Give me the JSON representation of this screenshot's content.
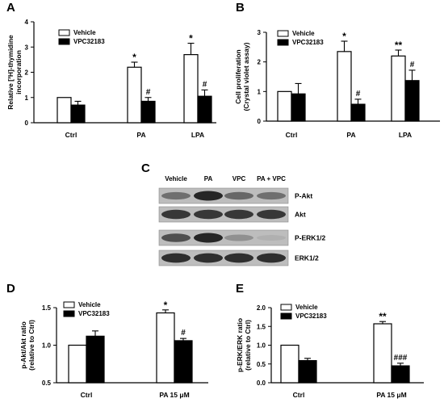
{
  "figure": {
    "panel_letters": [
      "A",
      "B",
      "C",
      "D",
      "E"
    ]
  },
  "colors": {
    "vehicle": "#ffffff",
    "vpc": "#000000",
    "axis": "#000000"
  },
  "chart_data": [
    {
      "panel": "A",
      "type": "bar",
      "categories": [
        "Ctrl",
        "PA",
        "LPA"
      ],
      "ylabel": "Relative [³H]-thymidine incorporation",
      "xlabel": "",
      "ylim": [
        0,
        4
      ],
      "yticks": [
        0,
        1,
        2,
        3,
        4
      ],
      "legend": "top-left",
      "series": [
        {
          "name": "Vehicle",
          "values": [
            1.0,
            2.2,
            2.7
          ],
          "errors": [
            0.0,
            0.2,
            0.45
          ],
          "annotations": [
            "",
            "*",
            "*"
          ]
        },
        {
          "name": "VPC32183",
          "values": [
            0.7,
            0.85,
            1.05
          ],
          "errors": [
            0.15,
            0.15,
            0.25
          ],
          "annotations": [
            "",
            "#",
            "#"
          ]
        }
      ]
    },
    {
      "panel": "B",
      "type": "bar",
      "categories": [
        "Ctrl",
        "PA",
        "LPA"
      ],
      "ylabel": "Cell proliferation (Crystal violet assay)",
      "xlabel": "",
      "ylim": [
        0,
        3
      ],
      "yticks": [
        0,
        1,
        2,
        3
      ],
      "legend": "top-left",
      "series": [
        {
          "name": "Vehicle",
          "values": [
            1.0,
            2.35,
            2.2
          ],
          "errors": [
            0.0,
            0.35,
            0.2
          ],
          "annotations": [
            "",
            "*",
            "**"
          ]
        },
        {
          "name": "VPC32183",
          "values": [
            0.92,
            0.57,
            1.37
          ],
          "errors": [
            0.35,
            0.17,
            0.35
          ],
          "annotations": [
            "",
            "#",
            "#"
          ]
        }
      ]
    },
    {
      "panel": "D",
      "type": "bar",
      "categories": [
        "Ctrl",
        "PA 15 μM"
      ],
      "ylabel": "p-Akt/Akt ratio (relative to Ctrl)",
      "xlabel": "",
      "ylim": [
        0.5,
        1.5
      ],
      "yticks": [
        0.5,
        1.0,
        1.5
      ],
      "legend": "top-left",
      "series": [
        {
          "name": "Vehicle",
          "values": [
            1.0,
            1.43
          ],
          "errors": [
            0.0,
            0.04
          ],
          "annotations": [
            "",
            "*"
          ]
        },
        {
          "name": "VPC32183",
          "values": [
            1.12,
            1.06
          ],
          "errors": [
            0.07,
            0.03
          ],
          "annotations": [
            "",
            "#"
          ]
        }
      ]
    },
    {
      "panel": "E",
      "type": "bar",
      "categories": [
        "Ctrl",
        "PA 15 μM"
      ],
      "ylabel": "p-ERK/ERK ratio (relative to Ctrl)",
      "xlabel": "",
      "ylim": [
        0.0,
        2.0
      ],
      "yticks": [
        0.0,
        0.5,
        1.0,
        1.5,
        2.0
      ],
      "legend": "top-left",
      "series": [
        {
          "name": "Vehicle",
          "values": [
            1.0,
            1.57
          ],
          "errors": [
            0.0,
            0.06
          ],
          "annotations": [
            "",
            "**"
          ]
        },
        {
          "name": "VPC32183",
          "values": [
            0.59,
            0.45
          ],
          "errors": [
            0.06,
            0.07
          ],
          "annotations": [
            "",
            "###"
          ]
        }
      ]
    }
  ],
  "blot": {
    "panel": "C",
    "lanes": [
      "Vehicle",
      "PA",
      "VPC",
      "PA + VPC"
    ],
    "rows": [
      {
        "label": "P-Akt",
        "intensity": [
          0.55,
          1.0,
          0.6,
          0.55
        ]
      },
      {
        "label": "Akt",
        "intensity": [
          0.9,
          0.9,
          0.9,
          0.9
        ]
      },
      {
        "label": "P-ERK1/2",
        "intensity": [
          0.75,
          1.0,
          0.35,
          0.15
        ]
      },
      {
        "label": "ERK1/2",
        "intensity": [
          0.95,
          0.95,
          0.95,
          0.95
        ]
      }
    ]
  }
}
